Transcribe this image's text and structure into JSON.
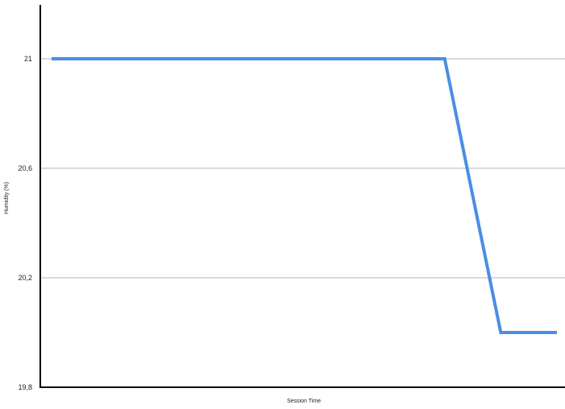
{
  "chart_data": {
    "type": "line",
    "title": "",
    "xlabel": "Session Time",
    "ylabel": "Humidity (%)",
    "ylim": [
      19.8,
      21.2
    ],
    "y_ticks": [
      21,
      20.6,
      20.2,
      19.8
    ],
    "y_tick_labels": [
      "21",
      "20,6",
      "20,2",
      "19,8"
    ],
    "grid": "horizontal",
    "x_tick_labels_shown": false,
    "series": [
      {
        "color": "#4a8ee4",
        "x": [
          0,
          1,
          2,
          3,
          4,
          5,
          6,
          7,
          8,
          9
        ],
        "y": [
          21,
          21,
          21,
          21,
          21,
          21,
          21,
          21,
          20,
          20
        ]
      }
    ]
  },
  "colors": {
    "axis": "#000000",
    "grid": "#d9d9d9",
    "line": "#4a8ee4"
  }
}
